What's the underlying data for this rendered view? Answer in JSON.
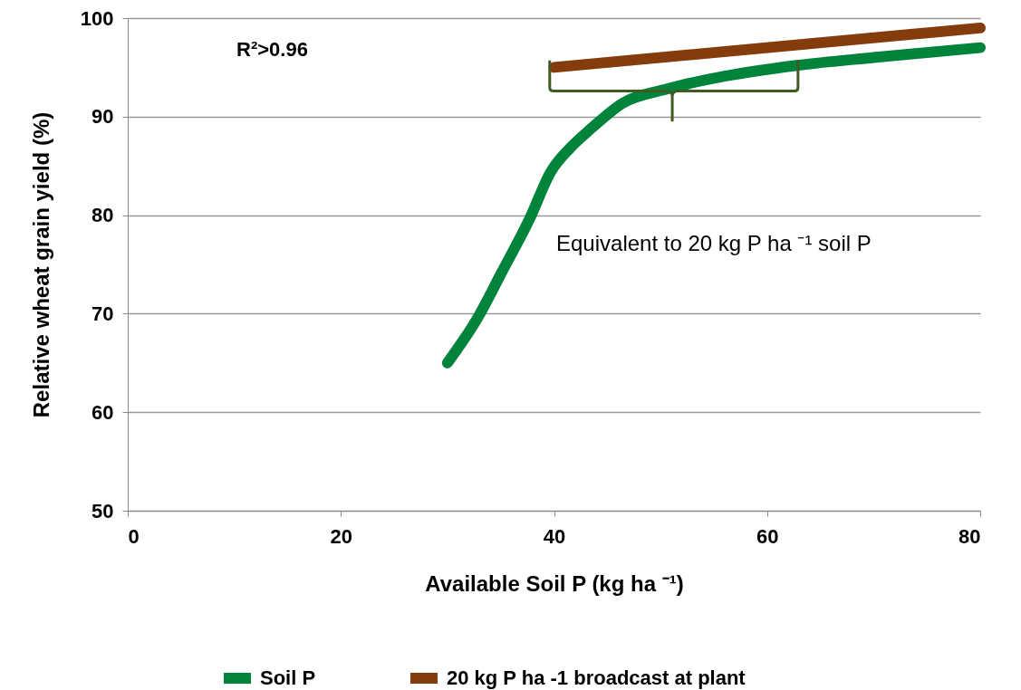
{
  "chart_data": {
    "type": "line",
    "xlabel": "Available Soil P (kg ha ⁻¹)",
    "ylabel": "Relative wheat grain yield (%)",
    "xlim": [
      0,
      80
    ],
    "ylim": [
      50,
      100
    ],
    "xticks": [
      0,
      20,
      40,
      60,
      80
    ],
    "yticks": [
      50,
      60,
      70,
      80,
      90,
      100
    ],
    "grid": "y",
    "legend": "bottom",
    "marker": "none",
    "line_style": "solid",
    "annotations": [
      "R²>0.96",
      "Equivalent to 20 kg P ha ⁻¹ soil P"
    ],
    "series": [
      {
        "name": "Soil P",
        "color": "#00843b",
        "x": [
          30,
          32.9,
          35,
          37.7,
          39.7,
          41.5,
          43.5,
          46.5,
          50.6,
          56,
          62.8,
          70,
          80
        ],
        "values": [
          65,
          69.7,
          74,
          79.6,
          84.4,
          86.8,
          88.8,
          91.4,
          92.8,
          94.1,
          95.2,
          96,
          97
        ]
      },
      {
        "name": "20 kg P ha -1  broadcast at plant",
        "color": "#843c0c",
        "x": [
          40,
          80
        ],
        "values": [
          95,
          99
        ]
      }
    ]
  }
}
